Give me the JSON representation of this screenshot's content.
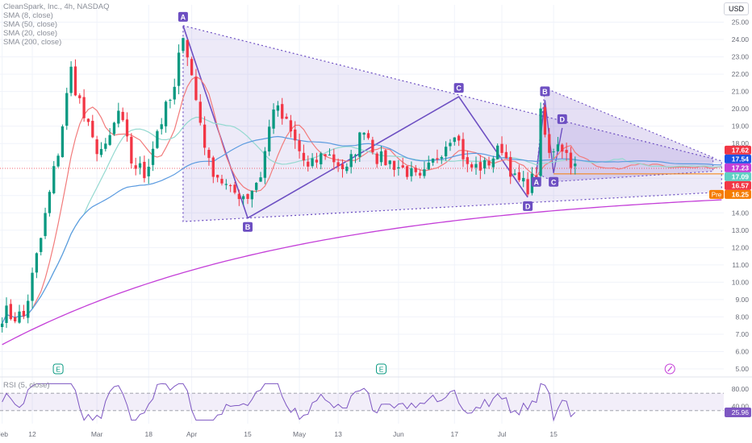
{
  "legend": {
    "title": "CleanSpark, Inc., 4h, NASDAQ",
    "sma1": "SMA (8, close)",
    "sma2": "SMA (50, close)",
    "sma3": "SMA (20, close)",
    "sma4": "SMA (200, close)"
  },
  "currency_button": "USD",
  "rsi_label": "RSI (5, close)",
  "colors": {
    "up": "#089981",
    "down": "#f23645",
    "sma8": "#f27b7b",
    "sma20": "#94d9d0",
    "sma50": "#5b9be0",
    "sma200": "#c43fd8",
    "pattern": "#6d4fc2",
    "grid": "#f0f3fa"
  },
  "events": [
    "E",
    "E"
  ],
  "chart_data": {
    "type": "candlestick",
    "title": "CleanSpark, Inc., 4h, NASDAQ",
    "ylim": [
      5.0,
      26.0
    ],
    "y_ticks": [
      "25.00",
      "24.00",
      "23.00",
      "22.00",
      "21.00",
      "20.00",
      "19.00",
      "18.00",
      "17.00",
      "16.00",
      "15.00",
      "14.00",
      "13.00",
      "12.00",
      "11.00",
      "10.00",
      "9.00",
      "8.00",
      "7.00",
      "6.00",
      "5.00"
    ],
    "y_tick_values": [
      25,
      24,
      23,
      22,
      21,
      20,
      19,
      18,
      17,
      16,
      15,
      14,
      13,
      12,
      11,
      10,
      9,
      8,
      7,
      6,
      5
    ],
    "x_ticks": [
      "Feb",
      "12",
      "Mar",
      "18",
      "Apr",
      "15",
      "May",
      "13",
      "Jun",
      "17",
      "Jul",
      "15"
    ],
    "bar_count": 168,
    "x_tick_bars": [
      0,
      7,
      22,
      34,
      44,
      57,
      69,
      78,
      92,
      105,
      116,
      128
    ],
    "close_path": [
      [
        0,
        8.2
      ],
      [
        5,
        8.0
      ],
      [
        9,
        12.5
      ],
      [
        13,
        17.6
      ],
      [
        16,
        22.2
      ],
      [
        19,
        19.5
      ],
      [
        21,
        18.0
      ],
      [
        24,
        17.5
      ],
      [
        27,
        19.8
      ],
      [
        30,
        17.0
      ],
      [
        33,
        16.2
      ],
      [
        36,
        18.8
      ],
      [
        40,
        21.0
      ],
      [
        42,
        24.6
      ],
      [
        45,
        20.5
      ],
      [
        48,
        16.8
      ],
      [
        53,
        15.2
      ],
      [
        57,
        15.0
      ],
      [
        60,
        16.2
      ],
      [
        63,
        20.2
      ],
      [
        66,
        19.1
      ],
      [
        71,
        16.5
      ],
      [
        75,
        17.5
      ],
      [
        80,
        16.4
      ],
      [
        84,
        19.0
      ],
      [
        87,
        17.2
      ],
      [
        91,
        16.8
      ],
      [
        94,
        16.4
      ],
      [
        97,
        15.8
      ],
      [
        100,
        16.9
      ],
      [
        105,
        18.8
      ],
      [
        108,
        16.6
      ],
      [
        112,
        16.7
      ],
      [
        116,
        17.8
      ],
      [
        119,
        15.9
      ],
      [
        122,
        15.5
      ],
      [
        124,
        16.3
      ],
      [
        125,
        19.6
      ],
      [
        127,
        17.3
      ],
      [
        129,
        18.2
      ],
      [
        131,
        17.4
      ],
      [
        133,
        16.6
      ]
    ],
    "price_labels": [
      {
        "value": 17.62,
        "text": "17.62",
        "color": "#f23645"
      },
      {
        "value": 17.54,
        "text": "17.54",
        "color": "#1e53e5"
      },
      {
        "value": 17.23,
        "text": "17.23",
        "color": "#c43fd8"
      },
      {
        "value": 17.09,
        "text": "17.09",
        "color": "#5fd0c4"
      },
      {
        "value": 16.57,
        "text": "16.57",
        "color": "#f23645"
      },
      {
        "value": 16.25,
        "text": "16.25",
        "color": "#f57c00",
        "prefix": "Pre"
      }
    ],
    "pattern_points": [
      {
        "label": "A",
        "bar": 42,
        "value": 24.8
      },
      {
        "label": "B",
        "bar": 57,
        "value": 13.7
      },
      {
        "label": "C",
        "bar": 106,
        "value": 20.7
      },
      {
        "label": "D",
        "bar": 122,
        "value": 14.9
      }
    ],
    "pattern_points_2": [
      {
        "label": "A",
        "bar": 124,
        "value": 16.3
      },
      {
        "label": "B",
        "bar": 126,
        "value": 20.5
      },
      {
        "label": "C",
        "bar": 128,
        "value": 16.3
      },
      {
        "label": "D",
        "bar": 130,
        "value": 18.9
      }
    ],
    "rsi": {
      "ylim": [
        0,
        100
      ],
      "ticks": [
        "80.00",
        "40.00"
      ],
      "tick_values": [
        80,
        40
      ],
      "current": "25.96",
      "current_value": 25.96,
      "band": [
        30,
        70
      ]
    }
  }
}
